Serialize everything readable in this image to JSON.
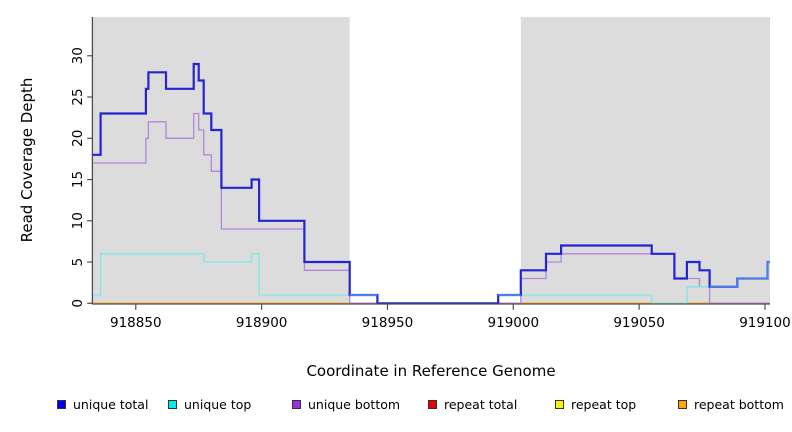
{
  "figure": {
    "background": "#ffffff",
    "shaded_region_color": "#dcdcdc",
    "axis_color": "#4d4d4d",
    "overlap_line_color": "#4b80e8"
  },
  "chart_data": {
    "type": "line",
    "subtype": "step-coverage",
    "title": "",
    "xlabel": "Coordinate in Reference Genome",
    "ylabel": "Read Coverage Depth",
    "xlim": [
      918833,
      919102
    ],
    "ylim": [
      0,
      34.7
    ],
    "x_ticks": [
      918850,
      918900,
      918950,
      919000,
      919050,
      919100
    ],
    "y_ticks": [
      0,
      5,
      10,
      15,
      20,
      25,
      30
    ],
    "grid": false,
    "legend_position": "bottom",
    "shaded_regions": [
      [
        918833,
        918935
      ],
      [
        919003,
        919102
      ]
    ],
    "draw_order": [
      4,
      3,
      5,
      2,
      1,
      0
    ],
    "series": [
      {
        "name": "unique total",
        "legend_color": "#0000ee",
        "line_color": "#2424d2",
        "line_width": 2.2,
        "steps": [
          [
            918833,
            18
          ],
          [
            918836,
            23
          ],
          [
            918854,
            26
          ],
          [
            918855,
            28
          ],
          [
            918862,
            26
          ],
          [
            918873,
            29
          ],
          [
            918875,
            27
          ],
          [
            918877,
            23
          ],
          [
            918880,
            21
          ],
          [
            918884,
            14
          ],
          [
            918896,
            15
          ],
          [
            918899,
            10
          ],
          [
            918917,
            5
          ],
          [
            918935,
            1
          ],
          [
            918946,
            0
          ],
          [
            918994,
            1
          ],
          [
            919003,
            4
          ],
          [
            919013,
            6
          ],
          [
            919019,
            7
          ],
          [
            919055,
            6
          ],
          [
            919064,
            3
          ],
          [
            919069,
            5
          ],
          [
            919074,
            4
          ],
          [
            919078,
            2
          ],
          [
            919089,
            3
          ],
          [
            919101,
            5
          ]
        ],
        "end": 919102
      },
      {
        "name": "unique top",
        "legend_color": "#00eded",
        "line_color": "#7ce8e8",
        "line_width": 1.3,
        "steps": [
          [
            918833,
            1
          ],
          [
            918836,
            6
          ],
          [
            918877,
            5
          ],
          [
            918896,
            6
          ],
          [
            918899,
            1
          ],
          [
            918946,
            0
          ],
          [
            918994,
            1
          ],
          [
            919055,
            0
          ],
          [
            919069,
            2
          ],
          [
            919089,
            3
          ],
          [
            919101,
            5
          ]
        ],
        "end": 919102
      },
      {
        "name": "unique bottom",
        "legend_color": "#9b30e2",
        "line_color": "#b286dc",
        "line_width": 1.3,
        "steps": [
          [
            918833,
            17
          ],
          [
            918854,
            20
          ],
          [
            918855,
            22
          ],
          [
            918862,
            20
          ],
          [
            918873,
            23
          ],
          [
            918875,
            21
          ],
          [
            918877,
            18
          ],
          [
            918880,
            16
          ],
          [
            918884,
            9
          ],
          [
            918917,
            4
          ],
          [
            918935,
            0
          ],
          [
            919003,
            3
          ],
          [
            919013,
            5
          ],
          [
            919019,
            6
          ],
          [
            919064,
            3
          ],
          [
            919074,
            2
          ],
          [
            919078,
            0
          ]
        ],
        "end": 919102
      },
      {
        "name": "repeat total",
        "legend_color": "#ee0000",
        "line_color": "#dd3344",
        "line_width": 1.3,
        "steps": [
          [
            918833,
            0
          ]
        ],
        "end": 919102
      },
      {
        "name": "repeat top",
        "legend_color": "#f4f400",
        "line_color": "#f2f200",
        "line_width": 1.3,
        "steps": [
          [
            918833,
            0
          ]
        ],
        "end": 919102
      },
      {
        "name": "repeat bottom",
        "legend_color": "#ffa500",
        "line_color": "#ffa41e",
        "line_width": 1.6,
        "steps": [
          [
            918833,
            0
          ]
        ],
        "end": 919102
      }
    ],
    "overlap_runs": [
      {
        "points": [
          [
            918935,
            1
          ]
        ],
        "end": 918946
      },
      {
        "points": [
          [
            918994,
            1
          ]
        ],
        "end": 919003
      },
      {
        "points": [
          [
            919078,
            2
          ],
          [
            919089,
            3
          ],
          [
            919101,
            5
          ]
        ],
        "end": 919102
      }
    ]
  }
}
